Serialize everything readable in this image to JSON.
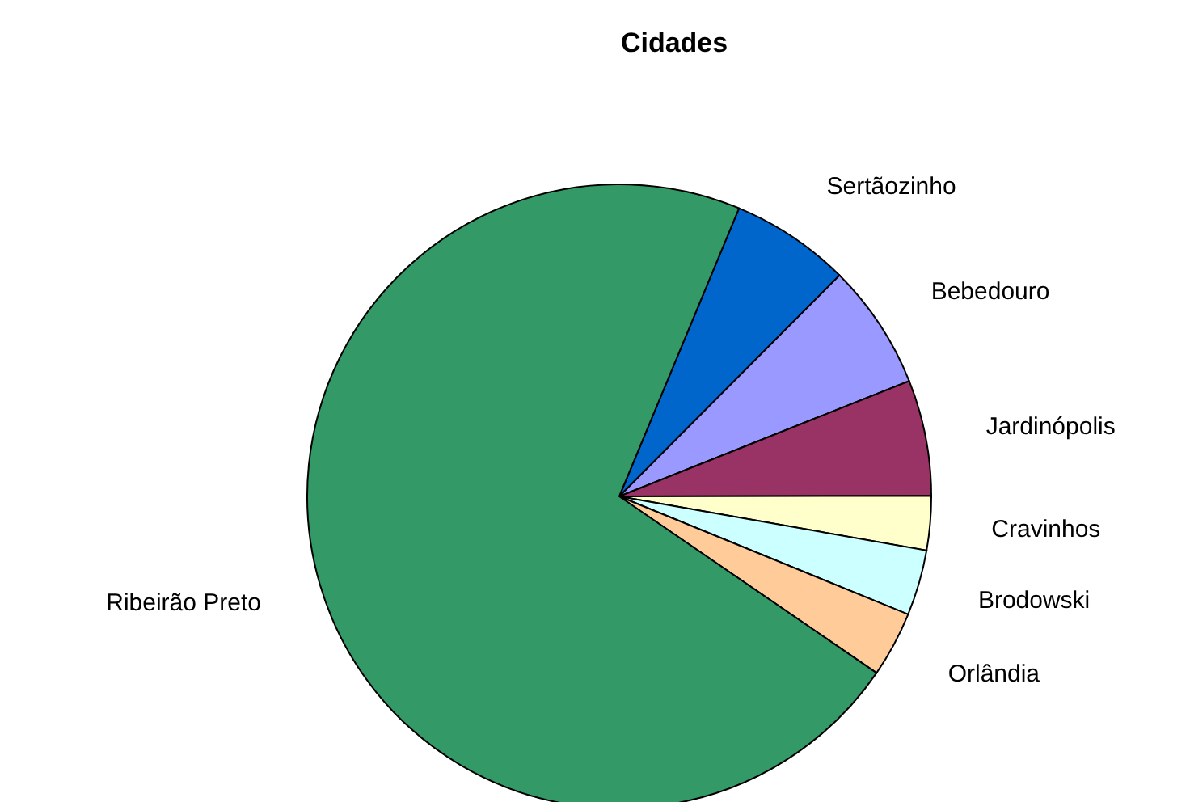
{
  "chart_data": {
    "type": "pie",
    "title": "Cidades",
    "categories": [
      "Sertãozinho",
      "Bebedouro",
      "Jardinópolis",
      "Cravinhos",
      "Brodowski",
      "Orlândia",
      "Ribeirão Preto"
    ],
    "values": [
      6.2,
      6.5,
      6.0,
      2.8,
      3.4,
      3.4,
      71.7
    ],
    "colors": [
      "#0066cc",
      "#9999ff",
      "#993366",
      "#ffffcc",
      "#ccffff",
      "#ffcc99",
      "#339966"
    ]
  }
}
